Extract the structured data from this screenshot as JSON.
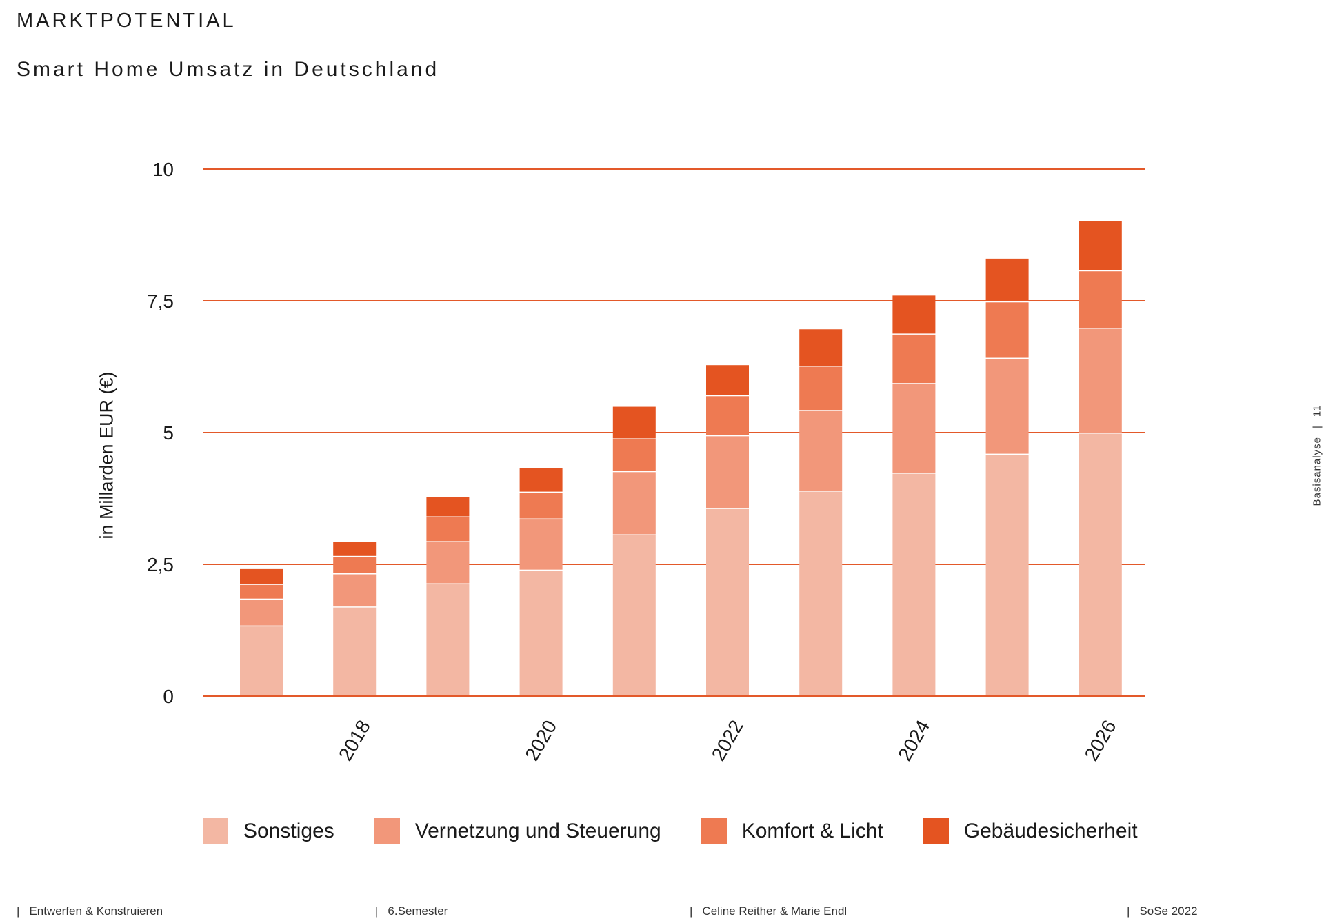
{
  "header": {
    "section_title": "MARKTPOTENTIAL",
    "chart_title": "Smart Home Umsatz in Deutschland"
  },
  "colors": {
    "gridline": "#e3592a",
    "sonstiges": "#f3b7a3",
    "vernetzung": "#f2977a",
    "komfort": "#ee7a52",
    "gebaeude": "#e45421"
  },
  "chart_data": {
    "type": "bar",
    "stacked": true,
    "title": "Smart Home Umsatz in Deutschland",
    "ylabel": "in Millarden EUR (€)",
    "xlabel": "",
    "ylim": [
      0,
      10
    ],
    "y_ticks": [
      {
        "value": 0,
        "label": "0"
      },
      {
        "value": 2.5,
        "label": "2,5"
      },
      {
        "value": 5,
        "label": "5"
      },
      {
        "value": 7.5,
        "label": "7,5"
      },
      {
        "value": 10,
        "label": "10"
      }
    ],
    "categories": [
      "2017",
      "2018",
      "2019",
      "2020",
      "2021",
      "2022",
      "2023",
      "2024",
      "2025",
      "2026"
    ],
    "x_tick_labels": [
      {
        "index": 1,
        "label": "2018"
      },
      {
        "index": 3,
        "label": "2020"
      },
      {
        "index": 5,
        "label": "2022"
      },
      {
        "index": 7,
        "label": "2024"
      },
      {
        "index": 9,
        "label": "2026"
      }
    ],
    "grid": true,
    "legend": "bottom",
    "series": [
      {
        "name": "Sonstiges",
        "color": "#f3b7a3",
        "values": [
          1.32,
          1.68,
          2.12,
          2.38,
          3.05,
          3.55,
          3.88,
          4.22,
          4.58,
          4.98
        ]
      },
      {
        "name": "Vernetzung und Steuerung",
        "color": "#f2977a",
        "values": [
          0.51,
          0.63,
          0.8,
          0.97,
          1.2,
          1.38,
          1.53,
          1.7,
          1.82,
          1.99
        ]
      },
      {
        "name": "Komfort & Licht",
        "color": "#ee7a52",
        "values": [
          0.28,
          0.33,
          0.47,
          0.51,
          0.62,
          0.76,
          0.84,
          0.94,
          1.07,
          1.09
        ]
      },
      {
        "name": "Gebäudesicherheit",
        "color": "#e45421",
        "values": [
          0.3,
          0.28,
          0.38,
          0.47,
          0.62,
          0.59,
          0.71,
          0.74,
          0.83,
          0.95
        ]
      }
    ]
  },
  "side_label": {
    "text": "Basisanalyse",
    "separator": "|",
    "page_number": "11"
  },
  "footer": {
    "separator": "|",
    "course": "Entwerfen & Konstruieren",
    "semester": "6.Semester",
    "authors": "Celine Reither & Marie Endl",
    "term": "SoSe 2022"
  }
}
